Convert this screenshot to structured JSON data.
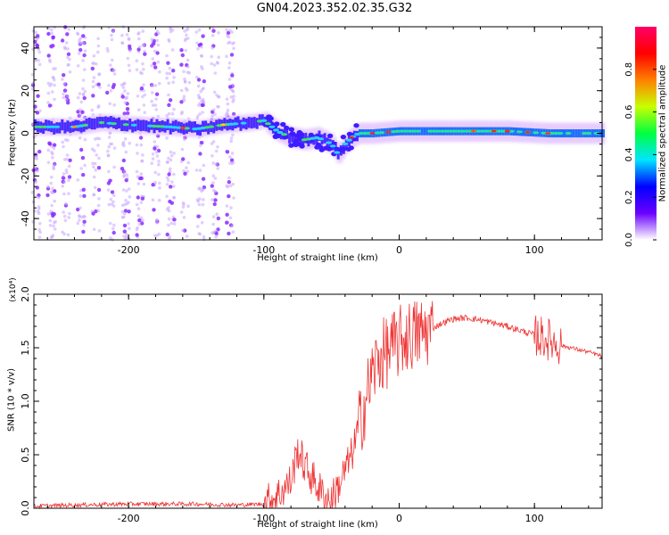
{
  "figure": {
    "title": "GN04.2023.352.02.35.G32"
  },
  "colorbar": {
    "label": "Normalized spectral amplitude",
    "ticks": [
      "0.0",
      "0.2",
      "0.4",
      "0.6",
      "0.8"
    ],
    "colors": [
      "#ffffff",
      "#6a00ff",
      "#0000ff",
      "#00e5ff",
      "#00ff40",
      "#c8ff00",
      "#ff8000",
      "#ff0000",
      "#ff0066"
    ]
  },
  "chart_data": [
    {
      "type": "heatmap",
      "xlabel": "Height of straight line (km)",
      "ylabel": "Frequency (Hz)",
      "xlim": [
        -270,
        150
      ],
      "ylim": [
        -50,
        50
      ],
      "x_ticks": [
        "-200",
        "-100",
        "0",
        "100"
      ],
      "y_ticks": [
        "-40",
        "-20",
        "0",
        "20",
        "40"
      ],
      "band_center": [
        [
          -270,
          3
        ],
        [
          -240,
          3
        ],
        [
          -220,
          5
        ],
        [
          -200,
          4
        ],
        [
          -170,
          3
        ],
        [
          -150,
          2
        ],
        [
          -130,
          4
        ],
        [
          -110,
          5
        ],
        [
          -100,
          6
        ],
        [
          -90,
          1
        ],
        [
          -80,
          -2
        ],
        [
          -70,
          -3
        ],
        [
          -60,
          -2
        ],
        [
          -50,
          -5
        ],
        [
          -45,
          -10
        ],
        [
          -40,
          -5
        ],
        [
          -35,
          -2
        ],
        [
          -30,
          0
        ],
        [
          -20,
          0
        ],
        [
          0,
          1
        ],
        [
          20,
          1
        ],
        [
          50,
          1
        ],
        [
          80,
          1
        ],
        [
          110,
          0
        ],
        [
          150,
          0
        ]
      ]
    },
    {
      "type": "line",
      "xlabel": "Height of straight line (km)",
      "ylabel": "SNR (10 * v/v)",
      "y_scale_note": "(x10⁴)",
      "xlim": [
        -270,
        150
      ],
      "ylim": [
        0,
        2.0
      ],
      "x_ticks": [
        "-200",
        "-100",
        "0",
        "100"
      ],
      "y_ticks": [
        "0.0",
        "0.5",
        "1.0",
        "1.5",
        "2.0"
      ],
      "series": [
        {
          "color": "#ee3333",
          "points": [
            [
              -270,
              0.02
            ],
            [
              -240,
              0.03
            ],
            [
              -200,
              0.04
            ],
            [
              -150,
              0.04
            ],
            [
              -120,
              0.03
            ],
            [
              -100,
              0.04
            ],
            [
              -90,
              0.12
            ],
            [
              -80,
              0.25
            ],
            [
              -75,
              0.55
            ],
            [
              -70,
              0.4
            ],
            [
              -65,
              0.3
            ],
            [
              -60,
              0.2
            ],
            [
              -55,
              0.1
            ],
            [
              -50,
              0.08
            ],
            [
              -45,
              0.2
            ],
            [
              -40,
              0.35
            ],
            [
              -35,
              0.5
            ],
            [
              -30,
              0.75
            ],
            [
              -25,
              1.0
            ],
            [
              -20,
              1.25
            ],
            [
              -15,
              1.4
            ],
            [
              -10,
              1.45
            ],
            [
              -5,
              1.5
            ],
            [
              0,
              1.55
            ],
            [
              5,
              1.6
            ],
            [
              10,
              1.62
            ],
            [
              20,
              1.65
            ],
            [
              30,
              1.72
            ],
            [
              40,
              1.77
            ],
            [
              50,
              1.78
            ],
            [
              60,
              1.76
            ],
            [
              70,
              1.73
            ],
            [
              80,
              1.7
            ],
            [
              90,
              1.66
            ],
            [
              100,
              1.62
            ],
            [
              110,
              1.58
            ],
            [
              120,
              1.52
            ],
            [
              130,
              1.49
            ],
            [
              140,
              1.46
            ],
            [
              150,
              1.42
            ]
          ]
        }
      ]
    }
  ]
}
